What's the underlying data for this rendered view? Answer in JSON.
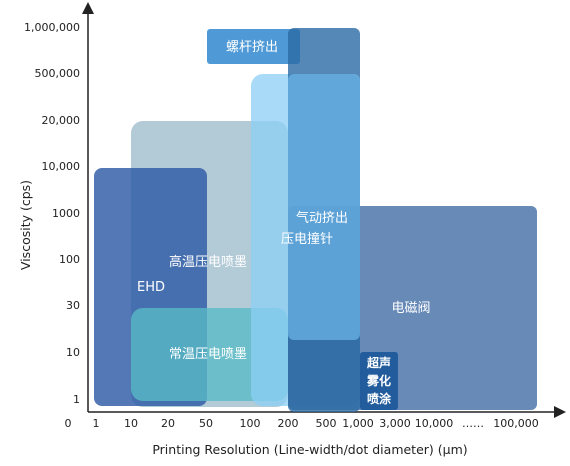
{
  "chart_data": {
    "type": "range-region",
    "xlabel": "Printing Resolution (Line-width/dot  diameter) (μm)",
    "ylabel": "Viscosity (cps)",
    "x_ticks": [
      "0",
      "1",
      "10",
      "20",
      "50",
      "100",
      "200",
      "500",
      "1,000",
      "3,000",
      "10,000",
      "……",
      "100,000"
    ],
    "y_ticks": [
      "1",
      "10",
      "30",
      "100",
      "1000",
      "10,000",
      "20,000",
      "500,000",
      "1,000,000"
    ],
    "regions": [
      {
        "name": "EHD",
        "x": [
          "1",
          "50"
        ],
        "y": [
          "<1",
          "10,000"
        ],
        "color": "#3a63a8"
      },
      {
        "name": "高温压电喷墨",
        "x": [
          "10",
          "200"
        ],
        "y": [
          "1",
          "20,000"
        ],
        "color": "#9ab8c9"
      },
      {
        "name": "常温压电喷墨",
        "x": [
          "10",
          "200"
        ],
        "y": [
          "1",
          "30"
        ],
        "color": "#5fbfcc"
      },
      {
        "name": "螺杆挤出",
        "x": [
          "<200",
          "500"
        ],
        "y": [
          "500,000",
          "1,000,000"
        ],
        "color": "#3f8fce"
      },
      {
        "name": "气动挤出压电撞针",
        "x": [
          "100",
          "1,000"
        ],
        "y": [
          "1",
          "500,000"
        ],
        "color": "#7ec4f0"
      },
      {
        "name": "压电撞针",
        "x": [
          "200",
          "1,000"
        ],
        "y": [
          "<1",
          "1,000,000"
        ],
        "color": "#2a6da6"
      },
      {
        "name": "电磁阀",
        "x": [
          "500",
          "100,000"
        ],
        "y": [
          "<1",
          "1000"
        ],
        "color": "#4c76aa"
      },
      {
        "name": "超声雾化喷涂",
        "x": [
          "1,000",
          "3,000"
        ],
        "y": [
          "1",
          "10"
        ],
        "color": "#1f5a9a"
      }
    ],
    "region_labels": {
      "ehd": "EHD",
      "ht_piezo": "高温压电喷墨",
      "rt_piezo": "常温压电喷墨",
      "screw": "螺杆挤出",
      "pneumatic_1": "气动挤出",
      "pneumatic_2": "压电撞针",
      "solenoid": "电磁阀",
      "ultrasonic_1": "超声",
      "ultrasonic_2": "雾化",
      "ultrasonic_3": "喷涂"
    },
    "grid": false,
    "legend": "none"
  }
}
